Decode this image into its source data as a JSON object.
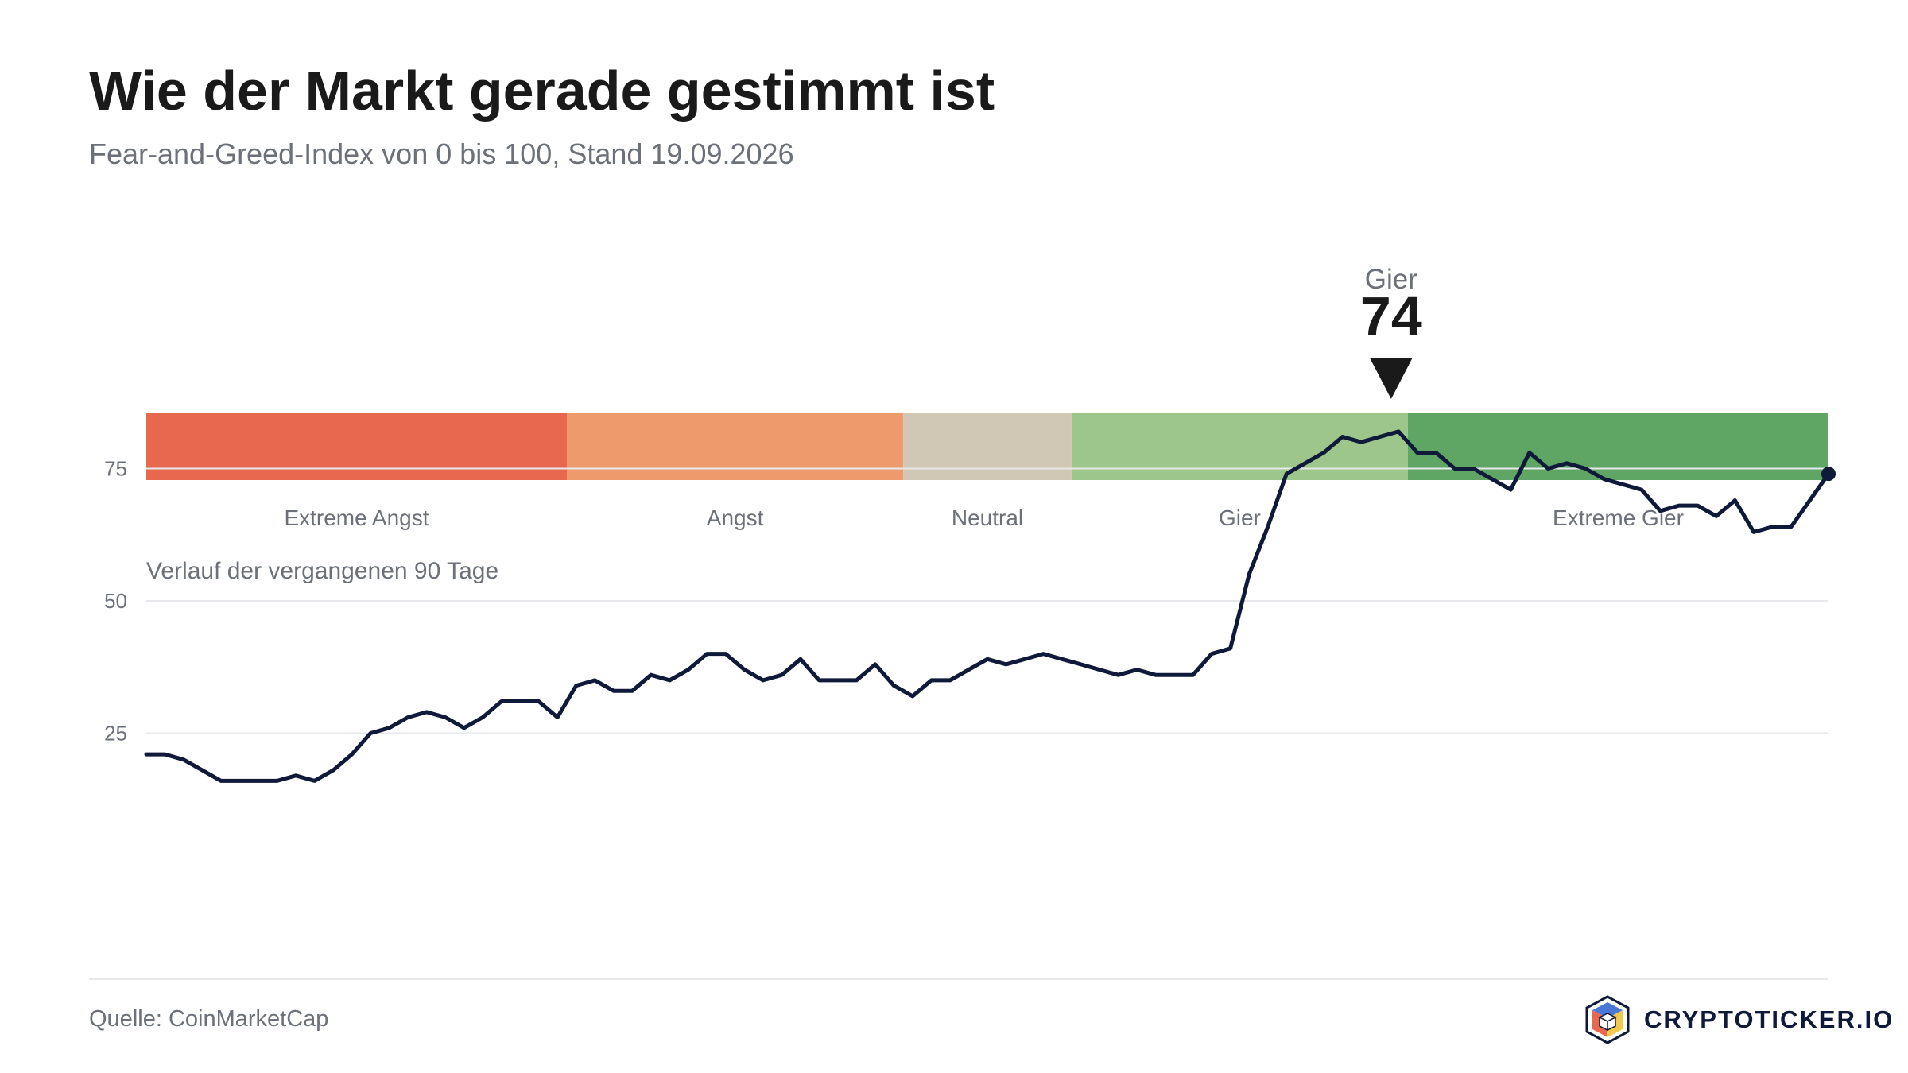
{
  "header": {
    "title": "Wie der Markt gerade gestimmt ist",
    "subtitle": "Fear-and-Greed-Index von 0 bis 100, Stand 19.09.2026"
  },
  "chart_data": [
    {
      "type": "gauge",
      "range": [
        0,
        100
      ],
      "value": 74,
      "value_label": "Gier",
      "segments": [
        {
          "label": "Extreme Angst",
          "from": 0,
          "to": 25,
          "color": "#e8684f"
        },
        {
          "label": "Angst",
          "from": 25,
          "to": 45,
          "color": "#ee9a6d"
        },
        {
          "label": "Neutral",
          "from": 45,
          "to": 55,
          "color": "#d0c8b4"
        },
        {
          "label": "Gier",
          "from": 55,
          "to": 75,
          "color": "#9dc68a"
        },
        {
          "label": "Extreme Gier",
          "from": 75,
          "to": 100,
          "color": "#5fa665"
        }
      ]
    },
    {
      "type": "line",
      "title": "Verlauf der vergangenen 90 Tage",
      "y_ticks": [
        25,
        50,
        75
      ],
      "ylim": [
        0,
        100
      ],
      "grid": true,
      "color": "#0f1a3a",
      "values": [
        21,
        21,
        20,
        18,
        16,
        16,
        16,
        16,
        17,
        16,
        18,
        21,
        25,
        26,
        28,
        29,
        28,
        26,
        28,
        31,
        31,
        31,
        28,
        34,
        35,
        33,
        33,
        36,
        35,
        37,
        40,
        40,
        37,
        35,
        36,
        39,
        35,
        35,
        35,
        38,
        34,
        32,
        35,
        35,
        37,
        39,
        38,
        39,
        40,
        39,
        38,
        37,
        36,
        37,
        36,
        36,
        36,
        40,
        41,
        55,
        64,
        74,
        76,
        78,
        81,
        80,
        81,
        82,
        78,
        78,
        75,
        75,
        73,
        71,
        78,
        75,
        76,
        75,
        73,
        72,
        71,
        67,
        68,
        68,
        66,
        69,
        63,
        64,
        64,
        69,
        74
      ]
    }
  ],
  "footer": {
    "source": "Quelle: CoinMarketCap",
    "brand": "CRYPTOTICKER.IO"
  }
}
